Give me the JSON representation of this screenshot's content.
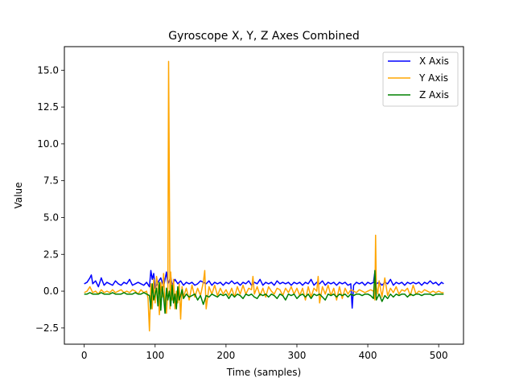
{
  "chart_data": {
    "type": "line",
    "title": "Gyroscope X, Y, Z Axes Combined",
    "xlabel": "Time (samples)",
    "ylabel": "Value",
    "xlim": [
      -28,
      535
    ],
    "ylim": [
      -3.6,
      16.6
    ],
    "xticks": [
      0,
      100,
      200,
      300,
      400,
      500
    ],
    "xtick_labels": [
      "0",
      "100",
      "200",
      "300",
      "400",
      "500"
    ],
    "yticks": [
      -2.5,
      0.0,
      2.5,
      5.0,
      7.5,
      10.0,
      12.5,
      15.0
    ],
    "ytick_labels": [
      "−2.5",
      "0.0",
      "2.5",
      "5.0",
      "7.5",
      "10.0",
      "12.5",
      "15.0"
    ],
    "grid": false,
    "legend_position": "top-right",
    "series": [
      {
        "name": "X Axis",
        "color": "#0000ff",
        "x": [
          0,
          4,
          8,
          10,
          12,
          16,
          20,
          24,
          28,
          32,
          36,
          40,
          44,
          48,
          52,
          56,
          60,
          64,
          68,
          72,
          76,
          80,
          84,
          88,
          92,
          94,
          96,
          98,
          100,
          104,
          108,
          112,
          116,
          118,
          120,
          122,
          124,
          128,
          132,
          136,
          140,
          144,
          148,
          152,
          156,
          160,
          164,
          168,
          172,
          176,
          180,
          184,
          188,
          192,
          196,
          200,
          204,
          208,
          212,
          216,
          220,
          224,
          228,
          232,
          236,
          240,
          244,
          248,
          252,
          256,
          260,
          264,
          268,
          272,
          276,
          280,
          284,
          288,
          292,
          296,
          300,
          304,
          308,
          312,
          316,
          320,
          324,
          328,
          332,
          336,
          340,
          344,
          348,
          352,
          356,
          360,
          364,
          368,
          372,
          376,
          378,
          380,
          384,
          388,
          392,
          396,
          400,
          404,
          408,
          410,
          412,
          416,
          420,
          424,
          428,
          432,
          436,
          440,
          444,
          448,
          452,
          456,
          460,
          464,
          468,
          472,
          476,
          480,
          484,
          488,
          492,
          496,
          500,
          504,
          507
        ],
        "y": [
          0.5,
          0.6,
          0.9,
          1.1,
          0.5,
          0.7,
          0.3,
          0.9,
          0.4,
          0.6,
          0.5,
          0.4,
          0.7,
          0.5,
          0.4,
          0.6,
          0.5,
          0.8,
          0.4,
          0.5,
          0.6,
          0.5,
          0.4,
          0.6,
          0.3,
          1.4,
          0.8,
          1.2,
          0.2,
          0.6,
          0.9,
          0.3,
          1.3,
          0.5,
          0.7,
          1.0,
          0.4,
          0.8,
          0.5,
          0.7,
          0.4,
          0.6,
          0.5,
          0.6,
          0.4,
          0.5,
          0.7,
          0.6,
          0.5,
          0.7,
          0.4,
          0.6,
          0.5,
          0.6,
          0.4,
          0.6,
          0.5,
          0.7,
          0.5,
          0.6,
          0.4,
          0.6,
          0.5,
          0.7,
          0.4,
          0.6,
          0.5,
          0.8,
          0.4,
          0.6,
          0.5,
          0.6,
          0.4,
          0.7,
          0.5,
          0.6,
          0.5,
          0.6,
          0.4,
          0.6,
          0.5,
          0.6,
          0.4,
          0.6,
          0.5,
          0.8,
          0.4,
          0.6,
          0.5,
          0.7,
          0.4,
          0.6,
          0.5,
          0.6,
          0.4,
          0.6,
          0.5,
          0.6,
          0.4,
          0.5,
          -1.15,
          0.4,
          0.6,
          0.5,
          0.6,
          0.4,
          0.6,
          0.5,
          0.6,
          1.3,
          0.5,
          0.6,
          0.4,
          0.6,
          0.5,
          0.8,
          0.4,
          0.6,
          0.5,
          0.6,
          0.4,
          0.6,
          0.5,
          0.6,
          0.5,
          0.6,
          0.4,
          0.6,
          0.5,
          0.7,
          0.5,
          0.6,
          0.4,
          0.6,
          0.5
        ]
      },
      {
        "name": "Y Axis",
        "color": "#ffa500",
        "x": [
          0,
          4,
          8,
          12,
          16,
          20,
          24,
          28,
          32,
          36,
          40,
          44,
          48,
          52,
          56,
          60,
          64,
          68,
          72,
          76,
          80,
          84,
          88,
          90,
          92,
          94,
          96,
          98,
          100,
          102,
          104,
          106,
          108,
          110,
          112,
          114,
          116,
          118,
          119,
          120,
          121,
          122,
          124,
          126,
          128,
          130,
          132,
          134,
          136,
          138,
          140,
          144,
          148,
          152,
          156,
          160,
          164,
          168,
          170,
          172,
          176,
          180,
          184,
          188,
          192,
          196,
          200,
          204,
          208,
          212,
          216,
          220,
          224,
          228,
          232,
          236,
          238,
          240,
          244,
          248,
          252,
          256,
          260,
          264,
          268,
          272,
          276,
          280,
          284,
          288,
          292,
          296,
          300,
          304,
          308,
          312,
          316,
          320,
          324,
          328,
          330,
          332,
          336,
          340,
          344,
          348,
          352,
          356,
          360,
          364,
          368,
          372,
          376,
          380,
          384,
          388,
          392,
          396,
          400,
          404,
          408,
          410,
          411,
          412,
          414,
          416,
          420,
          424,
          428,
          432,
          436,
          440,
          444,
          448,
          452,
          456,
          460,
          464,
          468,
          472,
          476,
          480,
          484,
          488,
          492,
          496,
          500,
          504,
          507
        ],
        "y": [
          -0.1,
          0.0,
          0.3,
          -0.1,
          0.0,
          -0.2,
          0.1,
          -0.1,
          0.0,
          -0.1,
          0.1,
          -0.1,
          0.0,
          0.1,
          -0.1,
          0.0,
          -0.1,
          0.1,
          0.0,
          -0.2,
          0.1,
          -0.1,
          0.0,
          -0.5,
          -2.7,
          0.5,
          -1.2,
          0.8,
          -0.8,
          1.0,
          0.4,
          -1.6,
          0.6,
          -0.4,
          1.2,
          -1.0,
          -1.5,
          0.3,
          15.6,
          8.0,
          -1.2,
          1.3,
          -0.6,
          0.8,
          -1.2,
          0.0,
          -0.8,
          0.5,
          -1.9,
          0.3,
          -0.4,
          0.2,
          -0.6,
          0.4,
          -0.4,
          0.2,
          -0.3,
          0.6,
          1.4,
          -1.2,
          0.3,
          -0.2,
          0.4,
          -0.3,
          0.2,
          -0.2,
          0.1,
          -0.3,
          0.2,
          -0.4,
          0.3,
          -0.2,
          0.4,
          -0.2,
          0.2,
          0.1,
          1.0,
          -0.2,
          0.3,
          -0.3,
          0.2,
          -0.4,
          0.3,
          0.0,
          -0.2,
          0.2,
          0.1,
          -0.3,
          0.2,
          -0.1,
          0.3,
          -0.2,
          0.2,
          -0.3,
          0.2,
          -0.6,
          0.3,
          -0.4,
          0.2,
          0.0,
          1.0,
          -0.8,
          0.3,
          -0.2,
          0.4,
          -0.3,
          0.2,
          -0.6,
          0.3,
          -0.5,
          0.2,
          -0.2,
          0.1,
          0.0,
          -0.1,
          0.1,
          0.0,
          -0.1,
          0.0,
          0.1,
          0.0,
          -0.6,
          3.8,
          0.3,
          -0.2,
          0.7,
          -0.4,
          0.9,
          -0.3,
          0.2,
          -0.1,
          0.3,
          -0.2,
          0.1,
          0.0,
          0.2,
          -0.3,
          0.4,
          -0.2,
          0.0,
          -0.1,
          0.1,
          0.0,
          -0.1,
          0.0,
          -0.1,
          0.0,
          -0.1,
          -0.1
        ]
      },
      {
        "name": "Z Axis",
        "color": "#008000",
        "x": [
          0,
          4,
          8,
          12,
          16,
          20,
          24,
          28,
          32,
          36,
          40,
          44,
          48,
          52,
          56,
          60,
          64,
          68,
          72,
          76,
          80,
          84,
          88,
          92,
          94,
          96,
          98,
          100,
          102,
          104,
          106,
          108,
          110,
          112,
          114,
          116,
          118,
          120,
          122,
          124,
          126,
          128,
          130,
          132,
          134,
          136,
          138,
          140,
          144,
          148,
          152,
          156,
          160,
          164,
          168,
          172,
          176,
          180,
          184,
          188,
          192,
          196,
          200,
          204,
          208,
          212,
          216,
          220,
          224,
          228,
          232,
          236,
          240,
          244,
          248,
          252,
          256,
          260,
          264,
          268,
          272,
          276,
          280,
          284,
          288,
          292,
          296,
          300,
          304,
          308,
          312,
          316,
          320,
          324,
          328,
          332,
          336,
          340,
          344,
          348,
          352,
          356,
          360,
          364,
          368,
          372,
          376,
          380,
          384,
          388,
          392,
          396,
          400,
          404,
          408,
          410,
          412,
          416,
          420,
          424,
          428,
          432,
          436,
          440,
          444,
          448,
          452,
          456,
          460,
          464,
          468,
          472,
          476,
          480,
          484,
          488,
          492,
          496,
          500,
          504,
          507
        ],
        "y": [
          -0.2,
          -0.2,
          -0.1,
          -0.2,
          -0.2,
          -0.2,
          -0.1,
          -0.2,
          -0.2,
          -0.2,
          -0.1,
          -0.2,
          -0.2,
          -0.2,
          -0.1,
          -0.2,
          -0.2,
          -0.2,
          -0.1,
          -0.2,
          -0.2,
          -0.1,
          -0.2,
          -0.3,
          -1.2,
          0.5,
          -0.6,
          -0.2,
          0.2,
          -1.0,
          0.6,
          -1.3,
          0.3,
          -0.4,
          -1.5,
          0.2,
          -0.6,
          0.0,
          -1.0,
          0.4,
          -0.8,
          -0.2,
          -1.2,
          0.3,
          -0.6,
          -0.3,
          0.1,
          -0.5,
          -0.2,
          -0.4,
          -0.3,
          -0.2,
          -0.6,
          -0.3,
          -0.9,
          -0.3,
          -0.4,
          -0.2,
          -0.3,
          -0.4,
          -0.2,
          -0.3,
          -0.2,
          -0.5,
          -0.2,
          -0.4,
          -0.2,
          -0.3,
          -0.5,
          -0.2,
          -0.3,
          -0.2,
          -0.4,
          -0.5,
          -0.2,
          -0.3,
          -0.2,
          -0.4,
          -0.2,
          -0.3,
          -0.5,
          -0.2,
          -0.3,
          -0.6,
          -0.2,
          -0.3,
          -0.2,
          -0.5,
          -0.3,
          -0.2,
          -0.4,
          -0.2,
          -0.5,
          -0.2,
          -0.3,
          -0.2,
          -0.4,
          -0.6,
          -0.2,
          -0.3,
          -0.2,
          -0.4,
          -0.2,
          -0.3,
          -0.2,
          -0.4,
          -0.2,
          -0.3,
          -0.2,
          -0.2,
          -0.3,
          -0.2,
          -0.2,
          -0.3,
          -0.5,
          1.4,
          -0.6,
          -0.2,
          -0.7,
          -0.3,
          -0.5,
          -0.2,
          -0.4,
          -0.2,
          -0.3,
          -0.2,
          -0.2,
          -0.4,
          -0.2,
          -0.3,
          -0.2,
          -0.2,
          -0.3,
          -0.2,
          -0.2,
          -0.2,
          -0.3,
          -0.2,
          -0.2,
          -0.2,
          -0.2
        ]
      }
    ]
  }
}
